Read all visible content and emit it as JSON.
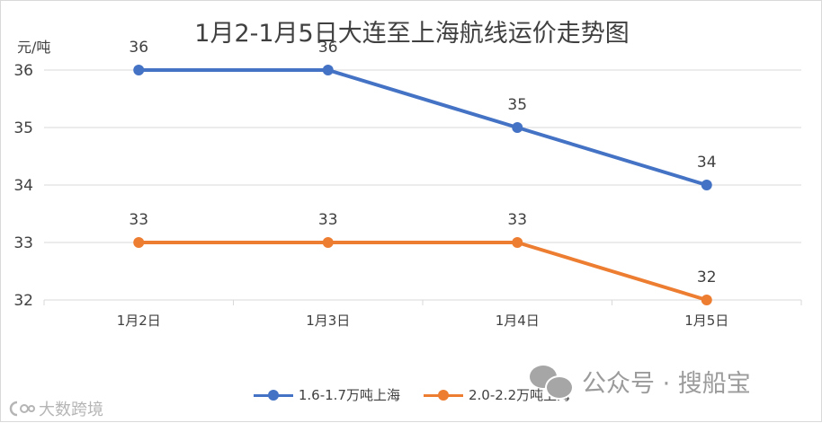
{
  "chart_data": {
    "type": "line",
    "title": "1月2-1月5日大连至上海航线运价走势图",
    "ylabel": "元/吨",
    "xlabel": "",
    "categories": [
      "1月2日",
      "1月3日",
      "1月4日",
      "1月5日"
    ],
    "ylim": [
      32,
      36
    ],
    "yticks": [
      32,
      33,
      34,
      35,
      36
    ],
    "grid": true,
    "legend_position": "bottom",
    "series": [
      {
        "name": "1.6-1.7万吨上海",
        "values": [
          36,
          36,
          35,
          34
        ],
        "color": "#4472c4"
      },
      {
        "name": "2.0-2.2万吨上海",
        "values": [
          33,
          33,
          33,
          32
        ],
        "color": "#ed7d31"
      }
    ]
  },
  "watermarks": {
    "wechat_icon": "wechat-icon",
    "account": "公众号 · 搜船宝",
    "logo_icon": "logo-icon",
    "logo_text": "大数跨境"
  }
}
